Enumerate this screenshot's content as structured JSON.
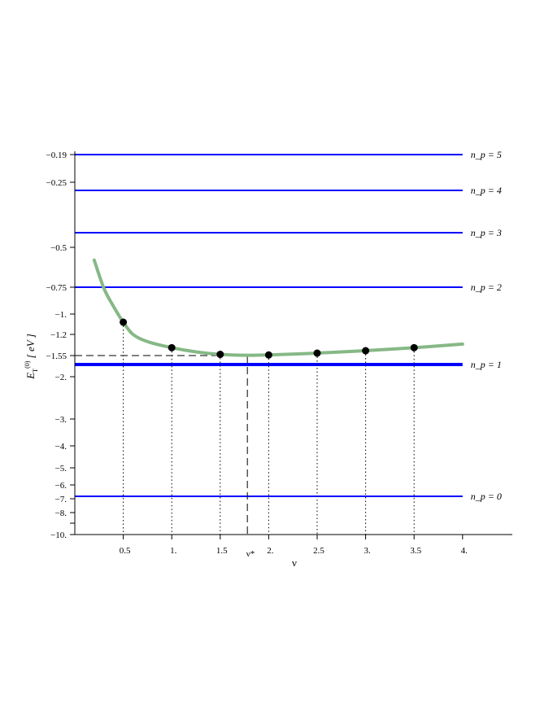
{
  "chart_data": {
    "type": "line",
    "xlabel": "ν",
    "ylabel": "E_T^(0) [eV]",
    "y_scale": "nonlinear (compressed)",
    "xlim": [
      0,
      4.5
    ],
    "ylim": [
      -10,
      -0.15
    ],
    "x_ticks": [
      {
        "value": 0.5,
        "label": "0.5"
      },
      {
        "value": 1.0,
        "label": "1."
      },
      {
        "value": 1.5,
        "label": "1.5"
      },
      {
        "value": 2.0,
        "label": "2."
      },
      {
        "value": 2.5,
        "label": "2.5"
      },
      {
        "value": 3.0,
        "label": "3."
      },
      {
        "value": 3.5,
        "label": "3.5"
      },
      {
        "value": 4.0,
        "label": "4."
      }
    ],
    "y_ticks": [
      {
        "value": -0.19,
        "label": "−0.19"
      },
      {
        "value": -0.25,
        "label": "−0.25"
      },
      {
        "value": -0.5,
        "label": "−0.5"
      },
      {
        "value": -0.75,
        "label": "−0.75"
      },
      {
        "value": -1.0,
        "label": "−1."
      },
      {
        "value": -1.2,
        "label": "−1.2"
      },
      {
        "value": -1.55,
        "label": "−1.55"
      },
      {
        "value": -2.0,
        "label": "−2."
      },
      {
        "value": -3.0,
        "label": "−3."
      },
      {
        "value": -4.0,
        "label": "−4."
      },
      {
        "value": -5.0,
        "label": "−5."
      },
      {
        "value": -6.0,
        "label": "−6."
      },
      {
        "value": -7.0,
        "label": "−7."
      },
      {
        "value": -8.0,
        "label": "−8."
      },
      {
        "value": -9.0,
        "label": ""
      },
      {
        "value": -10.0,
        "label": "−10."
      }
    ],
    "levels": [
      {
        "n": 5,
        "label": "n_p = 5",
        "energy": -0.19,
        "thick": false
      },
      {
        "n": 4,
        "label": "n_p = 4",
        "energy": -0.28,
        "thick": false
      },
      {
        "n": 3,
        "label": "n_p = 3",
        "energy": -0.42,
        "thick": false
      },
      {
        "n": 2,
        "label": "n_p = 2",
        "energy": -0.75,
        "thick": false
      },
      {
        "n": 1,
        "label": "n_p = 1",
        "energy": -1.7,
        "thick": true
      },
      {
        "n": 0,
        "label": "n_p = 0",
        "energy": -6.8,
        "thick": false
      }
    ],
    "curve": {
      "x": [
        0.2,
        0.3,
        0.4,
        0.5,
        0.6,
        0.75,
        1.0,
        1.25,
        1.5,
        1.75,
        2.0,
        2.5,
        3.0,
        3.5,
        4.0
      ],
      "y": [
        -0.58,
        -0.76,
        -0.93,
        -1.08,
        -1.2,
        -1.32,
        -1.42,
        -1.49,
        -1.53,
        -1.545,
        -1.54,
        -1.51,
        -1.47,
        -1.42,
        -1.36
      ]
    },
    "points": {
      "x": [
        0.5,
        1.0,
        1.5,
        2.0,
        2.5,
        3.0,
        3.5
      ],
      "y": [
        -1.08,
        -1.42,
        -1.53,
        -1.54,
        -1.51,
        -1.47,
        -1.42
      ]
    },
    "minimum": {
      "x_label": "ν*",
      "x": 1.78,
      "y": -1.55
    },
    "colors": {
      "levels": "#0000ff",
      "curve": "#86b886",
      "points": "#000000",
      "axes": "#000000"
    }
  }
}
